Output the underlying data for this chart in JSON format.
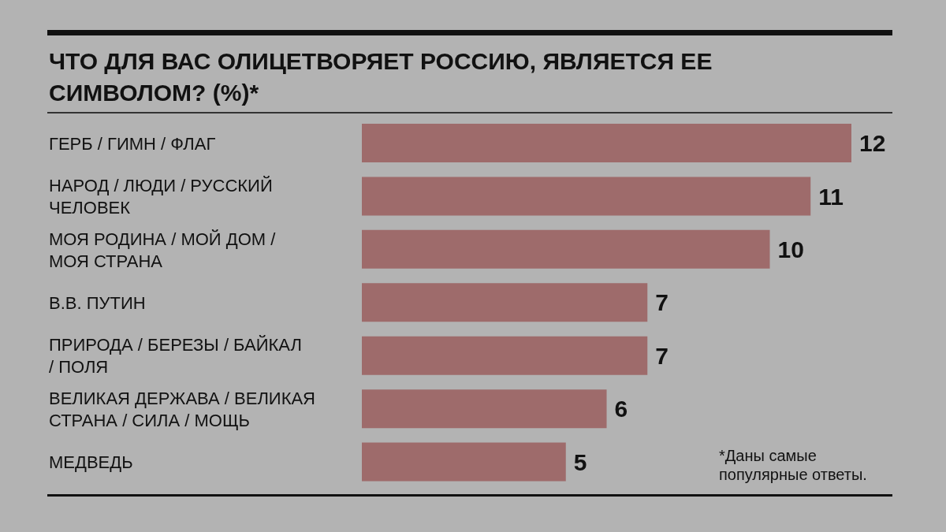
{
  "chart_data": {
    "type": "bar",
    "orientation": "horizontal",
    "title": "ЧТО ДЛЯ ВАС ОЛИЦЕТВОРЯЕТ РОССИЮ, ЯВЛЯЕТСЯ ЕЕ СИМВОЛОМ? (%)*",
    "categories": [
      "ГЕРБ / ГИМН / ФЛАГ",
      "НАРОД / ЛЮДИ / РУССКИЙ ЧЕЛОВЕК",
      "МОЯ РОДИНА / МОЙ ДОМ / МОЯ СТРАНА",
      "В.В. ПУТИН",
      "ПРИРОДА / БЕРЕЗЫ / БАЙКАЛ / ПОЛЯ",
      "ВЕЛИКАЯ ДЕРЖАВА / ВЕЛИКАЯ СТРАНА / СИЛА / МОЩЬ",
      "МЕДВЕДЬ"
    ],
    "values": [
      12,
      11,
      10,
      7,
      7,
      6,
      5
    ],
    "color": "#9e6b6b",
    "data_labels": true,
    "annotations": [
      "*Даны самые популярные ответы."
    ]
  }
}
